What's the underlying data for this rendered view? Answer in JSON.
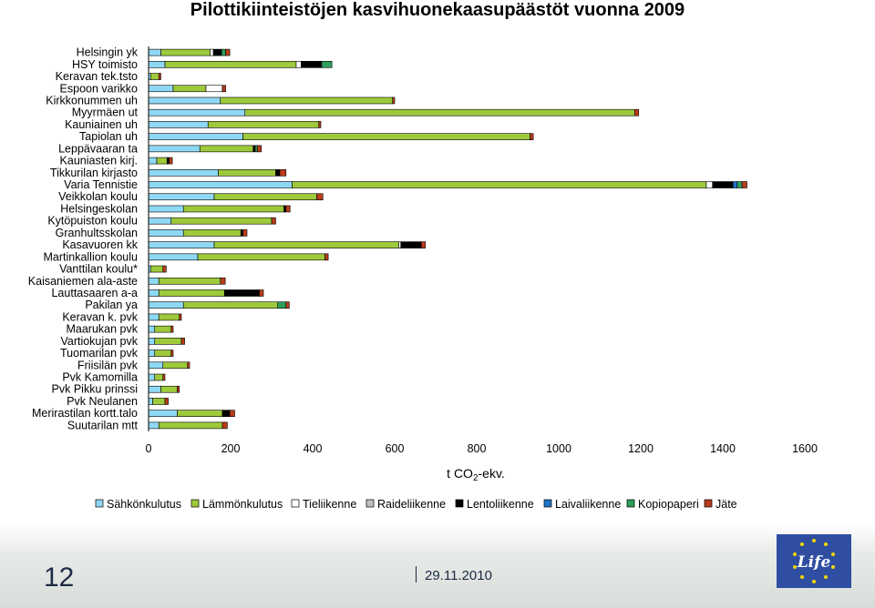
{
  "page": {
    "title": "Pilottikiinteistöjen kasvihuonekaasupäästöt vuonna  2009",
    "page_number": "12",
    "date": "29.11.2010"
  },
  "chart_data": {
    "type": "bar",
    "orientation": "horizontal",
    "stacked": true,
    "title": "Pilottikiinteistöjen kasvihuonekaasupäästöt vuonna  2009",
    "xlabel": "t CO2-ekv.",
    "xlim": [
      0,
      1600
    ],
    "xticks": [
      0,
      200,
      400,
      600,
      800,
      1000,
      1200,
      1400,
      1600
    ],
    "legend_position": "bottom",
    "grid": false,
    "categories": [
      "Helsingin yk",
      "HSY toimisto",
      "Keravan tek.tsto",
      "Espoon varikko",
      "Kirkkonummen uh",
      "Myyrmäen ut",
      "Kauniainen uh",
      "Tapiolan uh",
      "Leppävaaran ta",
      "Kauniasten kirj.",
      "Tikkurilan kirjasto",
      "Varia Tennistie",
      "Veikkolan koulu",
      "Helsingeskolan",
      "Kytöpuiston koulu",
      "Granhultsskolan",
      "Kasavuoren kk",
      "Martinkallion koulu",
      "Vanttilan koulu*",
      "Kaisaniemen ala-aste",
      "Lauttasaaren a-a",
      "Pakilan ya",
      "Keravan k. pvk",
      "Maarukan pvk",
      "Vartiokujan pvk",
      "Tuomarilan pvk",
      "Friisilän pvk",
      "Pvk Kamomilla",
      "Pvk Pikku prinssi",
      "Pvk Neulanen",
      "Merirastilan kortt.talo",
      "Suutarilan mtt"
    ],
    "series": [
      {
        "name": "Sähkönkulutus",
        "color": "#8fd8f5",
        "values": [
          30,
          40,
          5,
          60,
          175,
          235,
          145,
          230,
          125,
          20,
          170,
          350,
          160,
          85,
          55,
          85,
          160,
          120,
          5,
          25,
          25,
          85,
          25,
          15,
          15,
          15,
          35,
          15,
          30,
          10,
          70,
          25
        ]
      },
      {
        "name": "Lämmönkulutus",
        "color": "#9dc93b",
        "values": [
          120,
          320,
          20,
          80,
          420,
          950,
          270,
          700,
          130,
          25,
          140,
          1010,
          250,
          245,
          245,
          140,
          450,
          310,
          30,
          150,
          160,
          230,
          50,
          40,
          65,
          40,
          60,
          20,
          40,
          30,
          110,
          155
        ]
      },
      {
        "name": "Tieliikenne",
        "color": "#ffffff",
        "values": [
          8,
          12,
          0,
          40,
          0,
          0,
          0,
          0,
          0,
          0,
          0,
          15,
          0,
          0,
          0,
          0,
          5,
          0,
          0,
          0,
          0,
          0,
          0,
          0,
          0,
          0,
          0,
          0,
          0,
          0,
          0,
          0
        ]
      },
      {
        "name": "Raideliikenne",
        "color": "#c0c0c0",
        "values": [
          0,
          0,
          0,
          0,
          0,
          0,
          0,
          0,
          0,
          0,
          0,
          0,
          0,
          0,
          0,
          0,
          0,
          0,
          0,
          0,
          0,
          0,
          0,
          0,
          0,
          0,
          0,
          0,
          0,
          0,
          0,
          0
        ]
      },
      {
        "name": "Lentoliikenne",
        "color": "#000000",
        "values": [
          20,
          50,
          0,
          0,
          0,
          0,
          0,
          0,
          5,
          5,
          10,
          50,
          0,
          5,
          0,
          5,
          50,
          0,
          0,
          0,
          85,
          0,
          0,
          0,
          0,
          0,
          0,
          0,
          0,
          0,
          18,
          0
        ]
      },
      {
        "name": "Laivaliikenne",
        "color": "#1f74c7",
        "values": [
          0,
          0,
          0,
          0,
          0,
          0,
          0,
          0,
          0,
          0,
          0,
          10,
          0,
          0,
          0,
          0,
          0,
          0,
          0,
          0,
          0,
          0,
          0,
          0,
          0,
          0,
          0,
          0,
          0,
          0,
          0,
          0
        ]
      },
      {
        "name": "Kopiopaperi",
        "color": "#2e9e5a",
        "values": [
          10,
          25,
          0,
          0,
          0,
          0,
          0,
          0,
          5,
          0,
          0,
          12,
          0,
          0,
          0,
          0,
          0,
          0,
          0,
          0,
          0,
          20,
          0,
          0,
          0,
          0,
          0,
          0,
          0,
          0,
          0,
          0
        ]
      },
      {
        "name": "Jäte",
        "color": "#b83c1c",
        "values": [
          10,
          0,
          5,
          8,
          5,
          10,
          5,
          8,
          10,
          8,
          15,
          12,
          15,
          10,
          10,
          10,
          10,
          8,
          8,
          12,
          10,
          8,
          5,
          5,
          8,
          5,
          5,
          5,
          5,
          8,
          12,
          12
        ]
      }
    ]
  }
}
